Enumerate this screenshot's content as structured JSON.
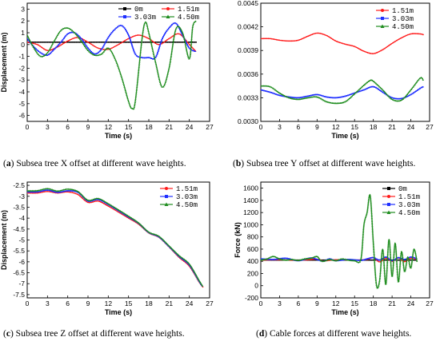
{
  "colors": {
    "black": "#000000",
    "red": "#ff1a1a",
    "blue": "#1f2fff",
    "green": "#1e8c1e"
  },
  "captions": {
    "a": {
      "letter": "a",
      "text": " Subsea tree X offset at different wave heights."
    },
    "b": {
      "letter": "b",
      "text": " Subsea tree Y offset at different wave heights."
    },
    "c": {
      "letter": "c",
      "text": " Subsea tree Z offset at different wave heights."
    },
    "d": {
      "letter": "d",
      "text": " Cable forces at different wave heights."
    }
  },
  "chart_data": [
    {
      "id": "a",
      "type": "line",
      "xlabel": "Time (s)",
      "ylabel": "Displacement (m)",
      "xlim": [
        0,
        27
      ],
      "ylim": [
        -6.5,
        3.5
      ],
      "xticks": [
        0,
        3,
        6,
        9,
        12,
        15,
        18,
        21,
        24,
        27
      ],
      "yticks": [
        -6,
        -5,
        -4,
        -3,
        -2,
        -1,
        0,
        1,
        2,
        3
      ],
      "legend_position": "top-right",
      "legend_columns": 2,
      "series": [
        {
          "name": "0m",
          "color": "black",
          "x": [
            0,
            25
          ],
          "y": [
            0.2,
            0.2
          ]
        },
        {
          "name": "1.51m",
          "color": "red",
          "x": [
            0,
            1.5,
            3,
            4.5,
            6,
            7.5,
            9,
            10.5,
            12,
            13.5,
            15,
            16.5,
            18,
            19.5,
            21,
            22.5,
            24,
            25
          ],
          "y": [
            0.2,
            0.0,
            -0.5,
            -0.2,
            0.3,
            0.6,
            0.2,
            -0.3,
            -0.4,
            0.0,
            0.5,
            0.8,
            0.5,
            0.0,
            0.5,
            0.9,
            0.0,
            -0.6
          ]
        },
        {
          "name": "3.03m",
          "color": "blue",
          "x": [
            0,
            1,
            2,
            3,
            4,
            5,
            6,
            7,
            8,
            9,
            10,
            11,
            12,
            13,
            14,
            15,
            16,
            17,
            18,
            19,
            20,
            21,
            22,
            23,
            24,
            25
          ],
          "y": [
            0.5,
            -0.2,
            -0.7,
            -0.9,
            -0.4,
            0.2,
            0.9,
            1.0,
            0.5,
            -0.3,
            -0.8,
            -0.4,
            0.6,
            1.3,
            1.6,
            0.8,
            -0.8,
            -1.1,
            -1.1,
            -1.1,
            0.5,
            1.4,
            1.8,
            0.8,
            -0.3,
            -0.6
          ]
        },
        {
          "name": "4.50m",
          "color": "green",
          "x": [
            0,
            1,
            2,
            3,
            4,
            5,
            6,
            7,
            8,
            9,
            10,
            11,
            12,
            13,
            14,
            15,
            15.5,
            16,
            17,
            17.5,
            18,
            19,
            20,
            21,
            22,
            23,
            24,
            24.5,
            25
          ],
          "y": [
            0.8,
            -0.3,
            -1.0,
            -0.7,
            0.3,
            1.2,
            1.4,
            1.0,
            0.3,
            -0.5,
            -0.9,
            -0.8,
            -0.3,
            -1.2,
            -2.8,
            -4.8,
            -5.4,
            -4.8,
            0.5,
            1.9,
            1.0,
            -1.5,
            -3.6,
            -2.0,
            1.3,
            1.0,
            -1.2,
            1.5,
            2.0
          ]
        }
      ]
    },
    {
      "id": "b",
      "type": "line",
      "xlabel": "Time (s)",
      "ylabel": "",
      "xlim": [
        0,
        27
      ],
      "ylim": [
        0.003,
        0.0045
      ],
      "xticks": [
        0,
        3,
        6,
        9,
        12,
        15,
        18,
        21,
        24,
        27
      ],
      "yticks": [
        "0.0030",
        "0.0033",
        "0.0036",
        "0.0039",
        "0.0042",
        "0.0045"
      ],
      "ytick_values": [
        0.003,
        0.0033,
        0.0036,
        0.0039,
        0.0042,
        0.0045
      ],
      "legend_position": "top-right",
      "legend_columns": 1,
      "series": [
        {
          "name": "1.51m",
          "color": "red",
          "x": [
            0,
            1.5,
            3,
            4.5,
            6,
            7.5,
            9,
            10.5,
            12,
            13.5,
            15,
            16.5,
            18,
            19.5,
            21,
            22.5,
            24,
            25.5,
            26
          ],
          "y": [
            0.00405,
            0.00405,
            0.00403,
            0.00402,
            0.00403,
            0.00408,
            0.00412,
            0.00409,
            0.00402,
            0.00398,
            0.00395,
            0.00389,
            0.00386,
            0.00391,
            0.00399,
            0.00406,
            0.00411,
            0.00411,
            0.0041
          ]
        },
        {
          "name": "3.03m",
          "color": "blue",
          "x": [
            0,
            1.5,
            3,
            4.5,
            6,
            7.5,
            9,
            10.5,
            12,
            13.5,
            15,
            16.5,
            18,
            19.5,
            21,
            22.5,
            24,
            25.5,
            26
          ],
          "y": [
            0.0034,
            0.00337,
            0.00333,
            0.00331,
            0.0033,
            0.00332,
            0.00334,
            0.00331,
            0.0033,
            0.00332,
            0.00336,
            0.0034,
            0.00344,
            0.00337,
            0.0033,
            0.00329,
            0.00334,
            0.00342,
            0.00344
          ]
        },
        {
          "name": "4.50m",
          "color": "green",
          "x": [
            0,
            1.5,
            3,
            4.5,
            6,
            7.5,
            9,
            10.5,
            12,
            13.5,
            15,
            16.5,
            17.5,
            18,
            19.5,
            21,
            22.5,
            24,
            25.5,
            26
          ],
          "y": [
            0.00345,
            0.00344,
            0.00336,
            0.0033,
            0.00328,
            0.0033,
            0.00331,
            0.00325,
            0.00323,
            0.00325,
            0.00335,
            0.00346,
            0.00352,
            0.00351,
            0.0034,
            0.00328,
            0.00327,
            0.0034,
            0.00355,
            0.00352
          ]
        }
      ]
    },
    {
      "id": "c",
      "type": "line",
      "xlabel": "Time (s)",
      "ylabel": "Displacement (m)",
      "xlim": [
        0,
        27
      ],
      "ylim": [
        -7.65,
        -2.35
      ],
      "xticks": [
        0,
        3,
        6,
        9,
        12,
        15,
        18,
        21,
        24,
        27
      ],
      "yticks": [
        -7.5,
        -7.0,
        -6.5,
        -6.0,
        -5.5,
        -5.0,
        -4.5,
        -4.0,
        -3.5,
        -3.0,
        -2.5
      ],
      "legend_position": "top-right",
      "legend_columns": 1,
      "series": [
        {
          "name": "1.51m",
          "color": "red",
          "x": [
            0,
            1.5,
            3,
            4.5,
            6,
            7.5,
            9,
            10.5,
            12,
            13.5,
            15,
            16.5,
            18,
            19.5,
            21,
            22.5,
            24,
            25.5,
            26
          ],
          "y": [
            -2.85,
            -2.85,
            -2.78,
            -2.85,
            -2.8,
            -2.92,
            -3.28,
            -3.22,
            -3.45,
            -3.72,
            -4.0,
            -4.28,
            -4.68,
            -4.88,
            -5.32,
            -5.8,
            -6.2,
            -6.95,
            -7.15
          ]
        },
        {
          "name": "3.03m",
          "color": "blue",
          "x": [
            0,
            1.5,
            3,
            4.5,
            6,
            7.5,
            9,
            10.5,
            12,
            13.5,
            15,
            16.5,
            18,
            19.5,
            21,
            22.5,
            24,
            25.5,
            26
          ],
          "y": [
            -2.8,
            -2.8,
            -2.72,
            -2.82,
            -2.75,
            -2.82,
            -3.22,
            -3.15,
            -3.38,
            -3.66,
            -3.95,
            -4.24,
            -4.66,
            -4.86,
            -5.3,
            -5.76,
            -6.15,
            -6.92,
            -7.14
          ]
        },
        {
          "name": "4.50m",
          "color": "green",
          "x": [
            0,
            1.5,
            3,
            4.5,
            6,
            7.5,
            9,
            10.5,
            12,
            13.5,
            15,
            16.5,
            18,
            19.5,
            21,
            22.5,
            24,
            25.5,
            26
          ],
          "y": [
            -2.75,
            -2.74,
            -2.65,
            -2.76,
            -2.67,
            -2.78,
            -3.18,
            -3.1,
            -3.34,
            -3.62,
            -3.91,
            -4.22,
            -4.64,
            -4.83,
            -5.27,
            -5.72,
            -6.1,
            -6.88,
            -7.13
          ]
        }
      ]
    },
    {
      "id": "d",
      "type": "line",
      "xlabel": "Time (s)",
      "ylabel": "Force (kN)",
      "xlim": [
        0,
        27
      ],
      "ylim": [
        -200,
        1700
      ],
      "xticks": [
        0,
        3,
        6,
        9,
        12,
        15,
        18,
        21,
        24,
        27
      ],
      "yticks": [
        -200,
        0,
        200,
        400,
        600,
        800,
        1000,
        1200,
        1400,
        1600
      ],
      "legend_position": "top-right",
      "legend_columns": 1,
      "series": [
        {
          "name": "0m",
          "color": "black",
          "x": [
            0,
            25
          ],
          "y": [
            420,
            420
          ]
        },
        {
          "name": "1.51m",
          "color": "red",
          "x": [
            0,
            3,
            6,
            9,
            10,
            12,
            15,
            17,
            18,
            19,
            20,
            21,
            22,
            23,
            24,
            25
          ],
          "y": [
            420,
            425,
            415,
            435,
            405,
            425,
            420,
            430,
            460,
            390,
            450,
            400,
            455,
            395,
            450,
            430
          ]
        },
        {
          "name": "3.03m",
          "color": "blue",
          "x": [
            0,
            2,
            4,
            6,
            8,
            9,
            10,
            11,
            12,
            14,
            16,
            17,
            18,
            19,
            20,
            21,
            22,
            23,
            24,
            25
          ],
          "y": [
            440,
            430,
            450,
            410,
            455,
            430,
            400,
            440,
            410,
            430,
            415,
            440,
            460,
            420,
            470,
            410,
            460,
            430,
            470,
            440
          ]
        },
        {
          "name": "4.50m",
          "color": "green",
          "x": [
            0,
            1,
            2,
            3,
            4,
            5,
            6,
            7,
            8,
            9,
            9.5,
            10,
            11,
            12,
            13,
            14,
            15,
            16,
            16.5,
            17,
            17.5,
            18,
            18.5,
            19,
            19.5,
            20,
            20.5,
            21,
            21.5,
            22,
            22.5,
            23,
            23.5,
            24,
            24.5,
            25
          ],
          "y": [
            420,
            440,
            480,
            440,
            420,
            430,
            415,
            440,
            450,
            480,
            420,
            400,
            430,
            410,
            440,
            420,
            410,
            430,
            1000,
            1200,
            1480,
            700,
            10,
            80,
            600,
            20,
            760,
            150,
            700,
            60,
            560,
            230,
            470,
            290,
            600,
            390
          ]
        }
      ]
    }
  ]
}
